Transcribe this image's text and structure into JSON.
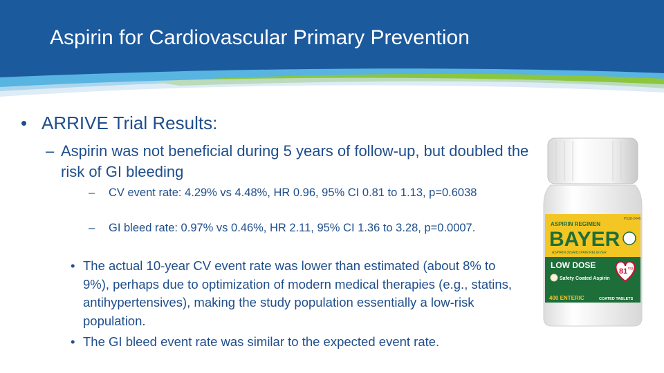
{
  "header": {
    "title": "Aspirin for Cardiovascular Primary Prevention",
    "colors": {
      "band": "#1c5a9e",
      "accent_light": "#58b4e0",
      "accent_green": "#8cc63f"
    }
  },
  "content": {
    "heading": "ARRIVE Trial Results:",
    "bullet_marker": "•",
    "dash_marker": "–",
    "summary": "Aspirin was not beneficial during 5 years of follow-up, but doubled the risk of GI bleeding",
    "stats": [
      "CV event rate: 4.29% vs 4.48%, HR 0.96, 95% CI 0.81 to 1.13, p=0.6038",
      "GI bleed rate: 0.97% vs 0.46%, HR 2.11, 95% CI 1.36 to 3.28, p=0.0007."
    ],
    "notes": [
      "The actual 10-year CV event rate was lower than estimated (about 8% to 9%), perhaps due to optimization of modern medical therapies (e.g., statins, antihypertensives), making the study population essentially a low-risk population.",
      "The GI bleed event rate was similar to the expected event rate."
    ]
  },
  "bottle": {
    "brand_top": "ASPIRIN REGIMEN",
    "brand": "BAYER",
    "subtitle": "ASPIRIN (NSAID) PAIN RELIEVER",
    "band": "LOW DOSE",
    "dose": "81",
    "dose_unit": "mg",
    "coating": "Safety Coated Aspirin",
    "count": "400 ENTERIC",
    "count_suffix": "COATED TABLETS",
    "lot": "P538-2446",
    "colors": {
      "label_yellow": "#f3c623",
      "green": "#1e6e3a",
      "red": "#c8102e"
    }
  }
}
